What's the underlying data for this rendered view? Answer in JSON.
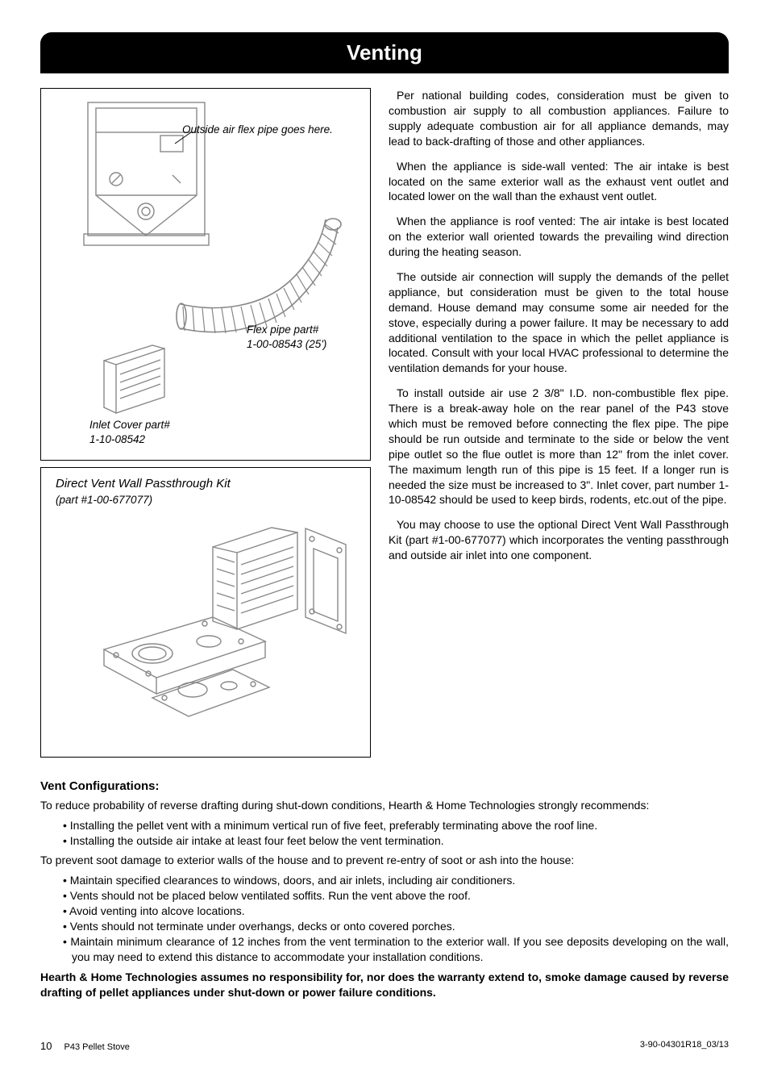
{
  "header": {
    "title": "Venting"
  },
  "figure1": {
    "label_air_pipe": "Outside air flex pipe goes here.",
    "label_flex_pipe_a": "Flex pipe part#",
    "label_flex_pipe_b": "1-00-08543 (25')",
    "label_inlet_a": "Inlet Cover part#",
    "label_inlet_b": "1-10-08542",
    "stroke": "#888888",
    "stroke_dark": "#555555"
  },
  "figure2": {
    "title": "Direct Vent Wall Passthrough Kit",
    "subtitle": "(part #1-00-677077)",
    "stroke": "#888888"
  },
  "right": {
    "p1": "Per national building codes, consideration must be given to combustion air supply to all combustion appliances. Failure to supply adequate combustion air for all appliance demands, may lead to back-drafting of those and other appliances.",
    "p2": "When the appliance is side-wall vented: The air intake is best located on the same exterior wall as the exhaust vent outlet and located lower on the wall than the exhaust vent outlet.",
    "p3": "When the appliance is roof vented: The air intake is best located on the exterior wall oriented towards the prevailing wind direction during the heating season.",
    "p4": "The outside air connection will supply the demands of the pellet appliance, but consideration must be given to the total house demand. House demand may consume some air needed for the stove, especially during a power failure. It may be necessary to add additional ventilation to the space in which the pellet appliance is located. Consult with your local HVAC professional to determine the ventilation demands for your house.",
    "p5": "To install outside air use 2 3/8\" I.D. non-combustible flex pipe. There is a break-away hole on the rear panel of the P43 stove which must be removed before connecting the flex pipe. The pipe should be run outside and terminate to the side or below the vent pipe outlet so the flue outlet is more than 12\" from the inlet cover. The maximum length run of this pipe is 15 feet. If a longer run is needed the size must be increased to 3\". Inlet cover, part number 1-10-08542 should be used to keep birds, rodents, etc.out of the pipe.",
    "p6": "You may choose to use the optional Direct Vent Wall Passthrough Kit (part #1-00-677077) which incorporates the venting passthrough and outside air inlet into one component."
  },
  "lower": {
    "subhead": "Vent Configurations:",
    "intro1": "To reduce probability of reverse drafting during shut-down conditions, Hearth & Home Technologies strongly recommends:",
    "list1": [
      "Installing the pellet vent with a minimum vertical run of five feet, preferably terminating above the roof line.",
      "Installing the outside air intake at least four feet below the vent termination."
    ],
    "intro2": "To prevent soot damage to exterior walls of the house and to prevent re-entry of soot or ash into the house:",
    "list2": [
      "Maintain specified clearances to windows, doors, and air inlets, including air conditioners.",
      "Vents should not be placed below ventilated soffits. Run the vent above the roof.",
      "Avoid venting into alcove locations.",
      "Vents should not terminate under overhangs, decks or onto covered porches.",
      "Maintain minimum clearance of 12 inches from the vent termination to the exterior wall. If you see deposits developing on the wall, you may need to extend this distance to accommodate your installation conditions."
    ],
    "bold_disclaimer": "Hearth & Home Technologies assumes no responsibility for, nor does the warranty extend to, smoke damage caused by reverse drafting of pellet appliances under shut-down or power failure conditions."
  },
  "footer": {
    "page": "10",
    "product": "P43 Pellet Stove",
    "docnum": "3-90-04301R18_03/13"
  }
}
